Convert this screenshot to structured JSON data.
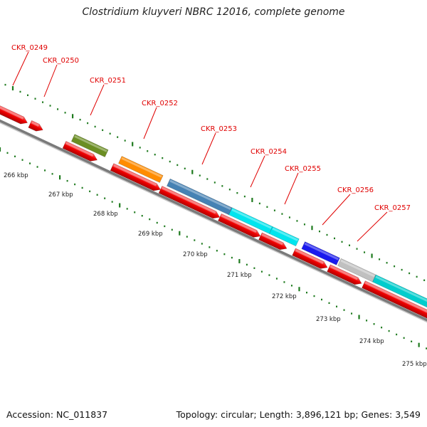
{
  "title": "Clostridium kluyveri NBRC 12016, complete genome",
  "footer": {
    "accession": "Accession: NC_011837",
    "summary": "Topology: circular; Length: 3,896,121 bp; Genes: 3,549"
  },
  "colors": {
    "backbone": "#7a7a7a",
    "tick": "#1e7a1e",
    "label": "#e00000",
    "cds": "#ee0000"
  },
  "genes": [
    {
      "label": "CKR_0249",
      "color": "#ee0000"
    },
    {
      "label": "CKR_0250",
      "color": "#ee0000"
    },
    {
      "label": "CKR_0251",
      "color": "#6b8e23"
    },
    {
      "label": "CKR_0252",
      "color": "#ff8c00"
    },
    {
      "label": "CKR_0253",
      "color": "#4682b4"
    },
    {
      "label": "CKR_0254",
      "color": "#00e5ee"
    },
    {
      "label": "CKR_0255",
      "color": "#00e5ee"
    },
    {
      "label": "CKR_0256",
      "color": "#1a1aee"
    },
    {
      "label": "CKR_0257",
      "color": "#c0c0c0"
    },
    {
      "label": "",
      "color": "#00cdcd"
    }
  ],
  "kbp_labels": [
    "266 kbp",
    "267 kbp",
    "268 kbp",
    "269 kbp",
    "270 kbp",
    "271 kbp",
    "272 kbp",
    "273 kbp",
    "274 kbp",
    "275 kbp"
  ]
}
